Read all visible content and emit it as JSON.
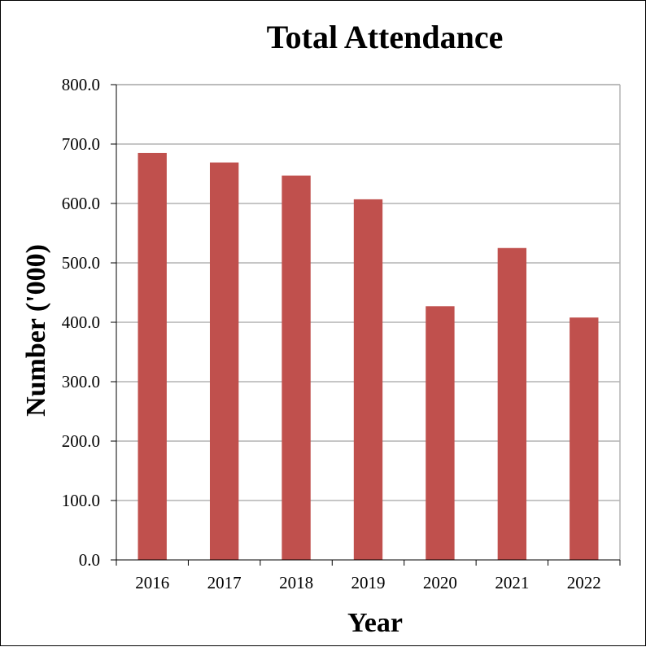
{
  "chart_data": {
    "type": "bar",
    "title": "Total Attendance",
    "xlabel": "Year",
    "ylabel": "Number ('000)",
    "categories": [
      "2016",
      "2017",
      "2018",
      "2019",
      "2020",
      "2021",
      "2022"
    ],
    "values": [
      685,
      669,
      647,
      607,
      427,
      525,
      408
    ],
    "ylim": [
      0,
      800
    ],
    "yticks": [
      "0.0",
      "100.0",
      "200.0",
      "300.0",
      "400.0",
      "500.0",
      "600.0",
      "700.0",
      "800.0"
    ],
    "grid": true,
    "bar_color": "#c0504d",
    "grid_color": "#b3b3b3"
  }
}
